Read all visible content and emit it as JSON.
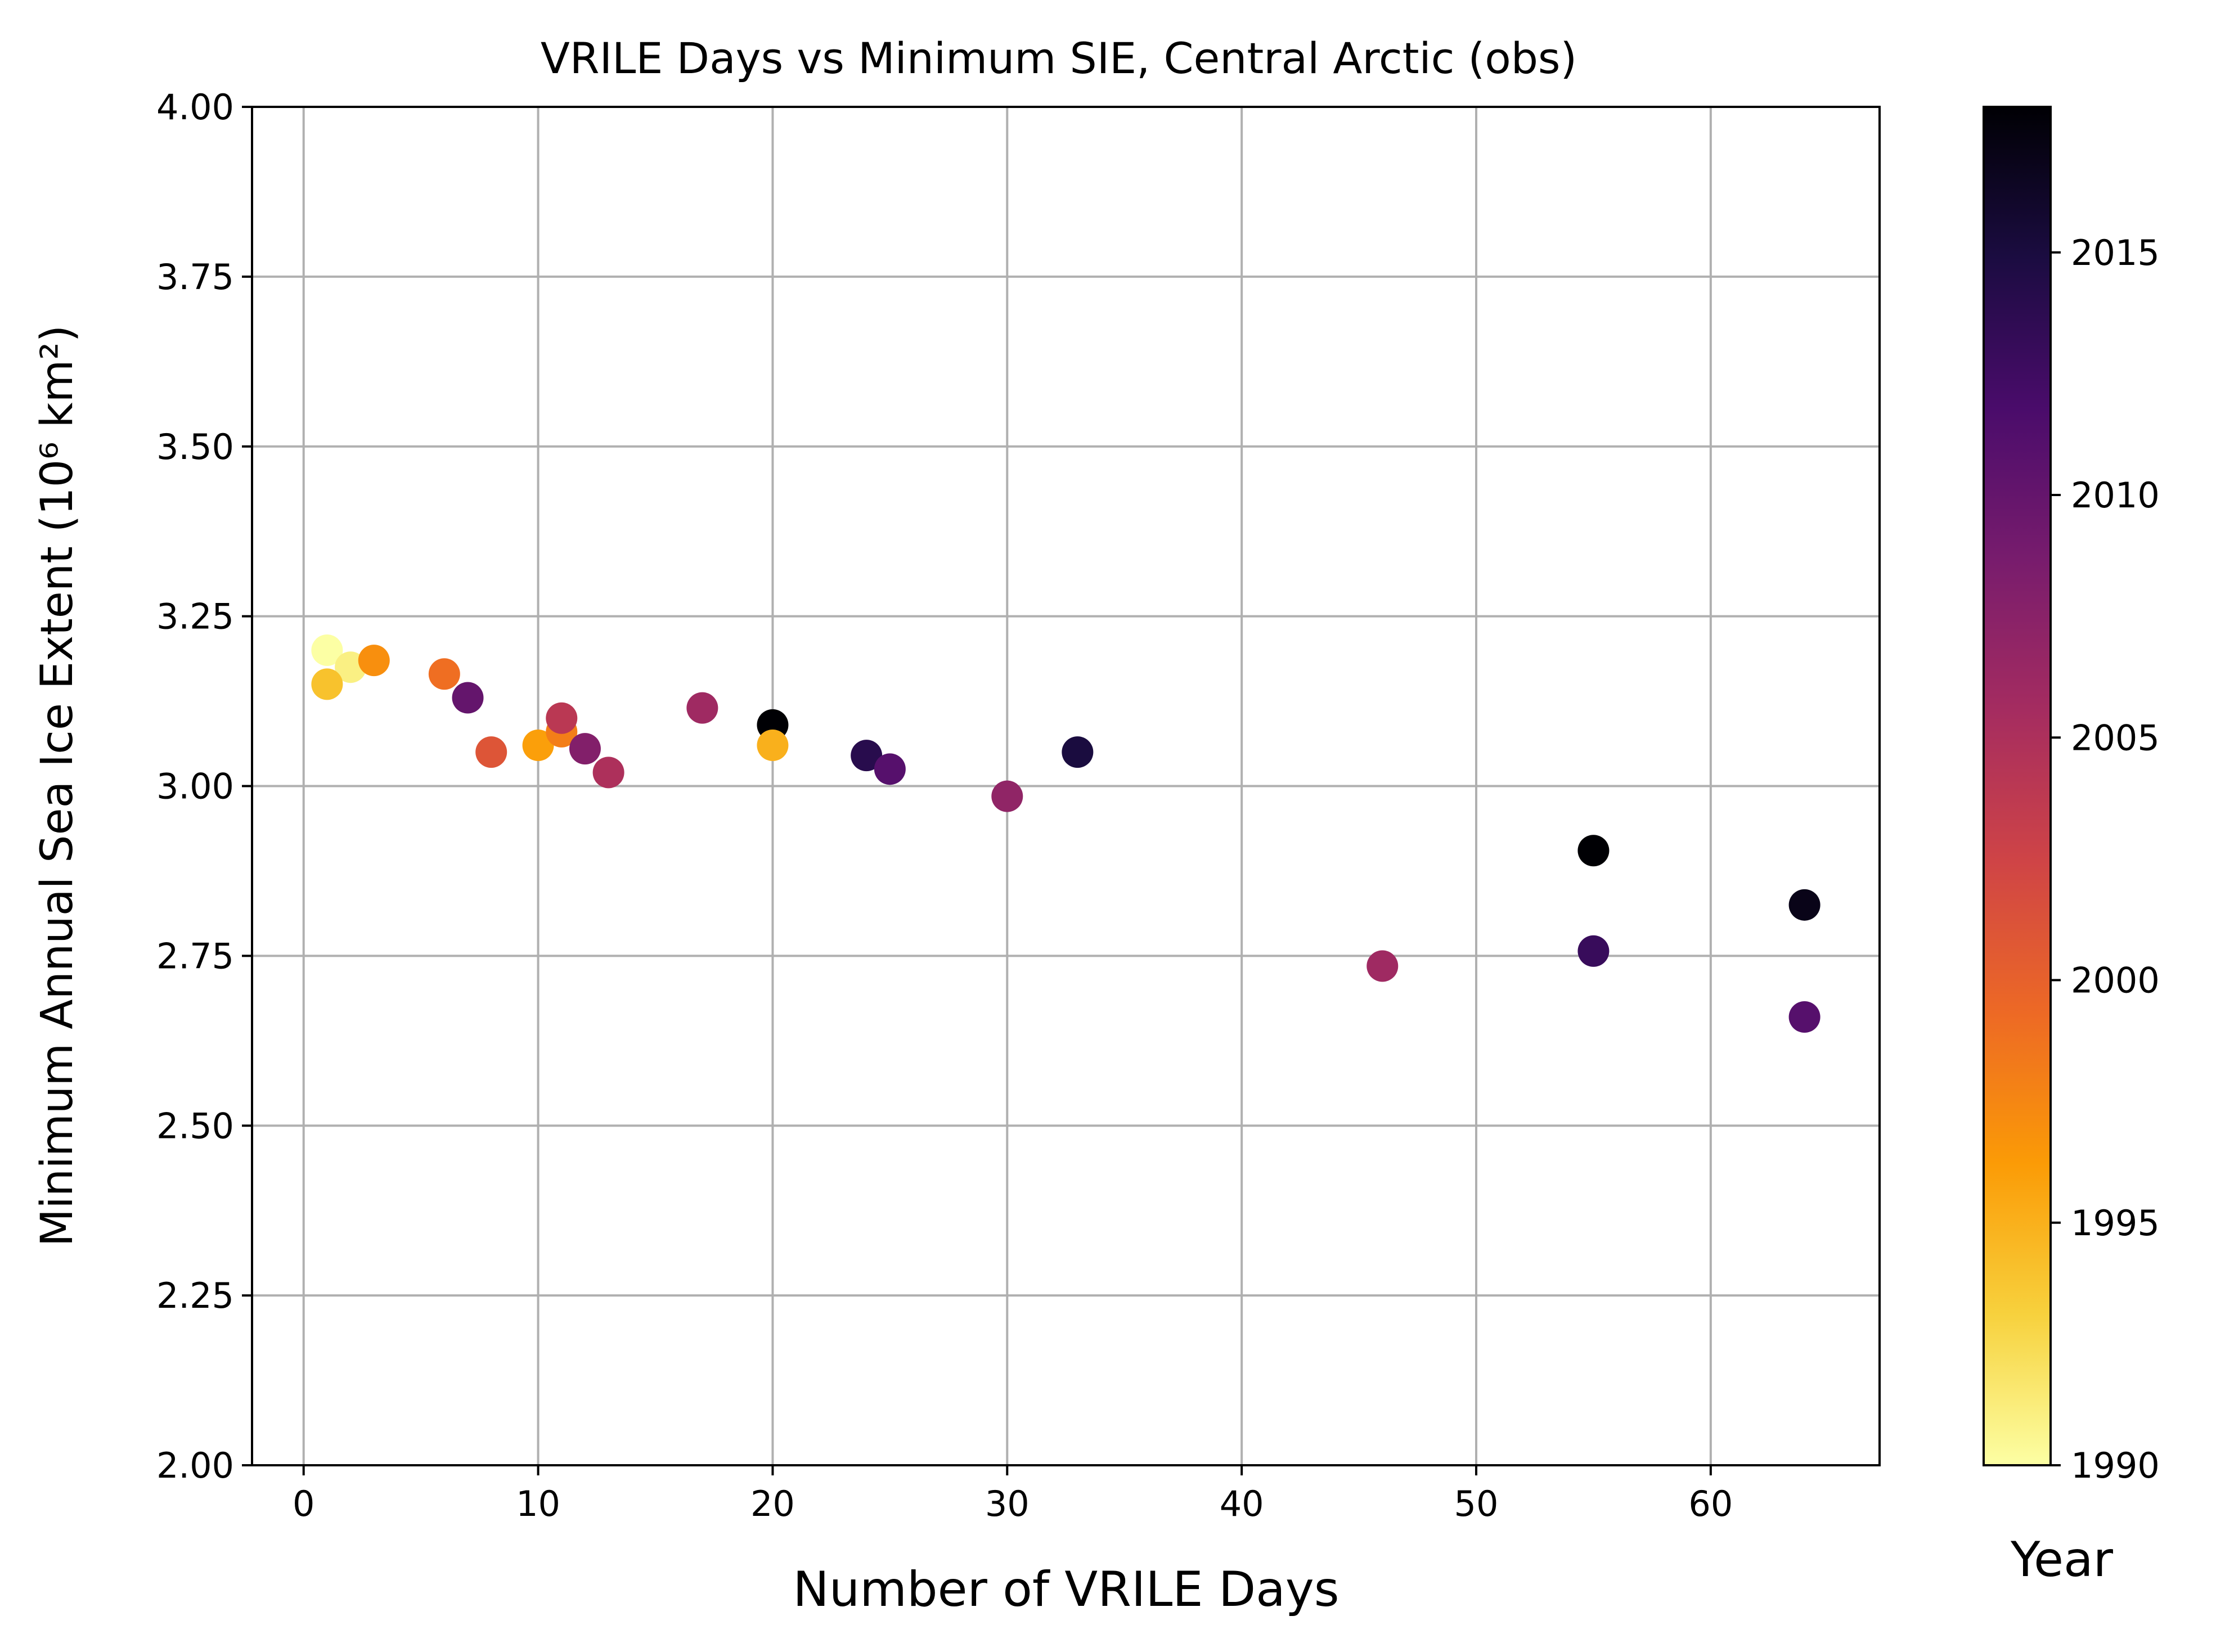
{
  "chart_data": {
    "type": "scatter",
    "title": "VRILE Days vs Minimum SIE, Central Arctic (obs)",
    "xlabel": "Number of VRILE Days",
    "ylabel": "Minimum Annual Sea Ice Extent (10⁶ km²)",
    "xlim": [
      -2.2,
      67.2
    ],
    "ylim": [
      2.0,
      4.0
    ],
    "xticks": [
      0,
      10,
      20,
      30,
      40,
      50,
      60
    ],
    "yticks": [
      2.0,
      2.25,
      2.5,
      2.75,
      3.0,
      3.25,
      3.5,
      3.75,
      4.0
    ],
    "xtick_labels": [
      "0",
      "10",
      "20",
      "30",
      "40",
      "50",
      "60"
    ],
    "ytick_labels": [
      "2.00",
      "2.25",
      "2.50",
      "2.75",
      "3.00",
      "3.25",
      "3.50",
      "3.75",
      "4.00"
    ],
    "grid": true,
    "colorbar": {
      "label": "Year",
      "colormap": "inferno_r",
      "range": [
        1990,
        2018
      ],
      "ticks": [
        1990,
        1995,
        2000,
        2005,
        2010,
        2015
      ],
      "tick_labels": [
        "1990",
        "1995",
        "2000",
        "2005",
        "2010",
        "2015"
      ],
      "color_stops": [
        "#fcffa4",
        "#f7d13d",
        "#fb9b06",
        "#ed6925",
        "#cf4446",
        "#a52c60",
        "#781c6d",
        "#4a0c6b",
        "#1b0c41",
        "#000004"
      ]
    },
    "points": [
      {
        "x": 1,
        "y": 3.2,
        "year": 1990
      },
      {
        "x": 2,
        "y": 3.175,
        "year": 1991
      },
      {
        "x": 1,
        "y": 3.15,
        "year": 1994
      },
      {
        "x": 3,
        "y": 3.185,
        "year": 1997
      },
      {
        "x": 6,
        "y": 3.165,
        "year": 1999
      },
      {
        "x": 7,
        "y": 3.13,
        "year": 2010
      },
      {
        "x": 8,
        "y": 3.05,
        "year": 2001
      },
      {
        "x": 10,
        "y": 3.06,
        "year": 1996
      },
      {
        "x": 11,
        "y": 3.08,
        "year": 1998
      },
      {
        "x": 11,
        "y": 3.1,
        "year": 2004
      },
      {
        "x": 12,
        "y": 3.055,
        "year": 2008
      },
      {
        "x": 13,
        "y": 3.02,
        "year": 2005
      },
      {
        "x": 17,
        "y": 3.115,
        "year": 2006
      },
      {
        "x": 20,
        "y": 3.09,
        "year": 2018
      },
      {
        "x": 20,
        "y": 3.06,
        "year": 1995
      },
      {
        "x": 24,
        "y": 3.045,
        "year": 2014
      },
      {
        "x": 25,
        "y": 3.025,
        "year": 2011
      },
      {
        "x": 30,
        "y": 2.985,
        "year": 2007
      },
      {
        "x": 33,
        "y": 3.05,
        "year": 2015
      },
      {
        "x": 46,
        "y": 2.735,
        "year": 2006
      },
      {
        "x": 55,
        "y": 2.905,
        "year": 2018
      },
      {
        "x": 55,
        "y": 2.757,
        "year": 2013
      },
      {
        "x": 64,
        "y": 2.825,
        "year": 2017
      },
      {
        "x": 64,
        "y": 2.66,
        "year": 2011
      }
    ]
  }
}
